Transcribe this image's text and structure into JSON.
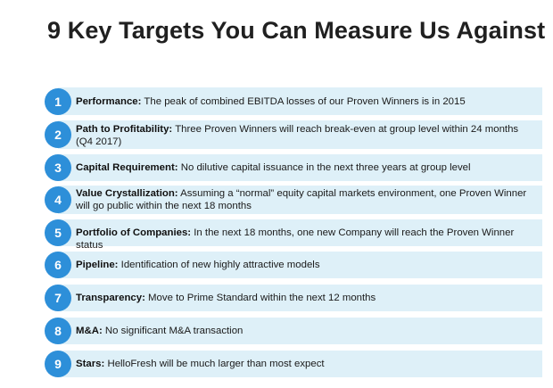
{
  "title": "9 Key Targets You Can Measure Us Against",
  "targets": [
    {
      "number": "1",
      "label": "Performance:",
      "text": "The peak of combined EBITDA losses of our Proven Winners is in 2015"
    },
    {
      "number": "2",
      "label": "Path to Profitability:",
      "text": "Three Proven Winners will reach break-even at group level within 24 months (Q4 2017)"
    },
    {
      "number": "3",
      "label": "Capital Requirement:",
      "text": "No dilutive capital issuance in the next three years at group level"
    },
    {
      "number": "4",
      "label": "Value Crystallization:",
      "text": "Assuming a “normal” equity capital markets environment, one Proven Winner will go public within the next 18 months"
    },
    {
      "number": "5",
      "label": "Portfolio of Companies:",
      "text": "In the next 18 months, one new Company will reach the Proven Winner status"
    },
    {
      "number": "6",
      "label": "Pipeline:",
      "text": "Identification of new highly attractive models"
    },
    {
      "number": "7",
      "label": "Transparency:",
      "text": "Move to Prime Standard within the next 12 months"
    },
    {
      "number": "8",
      "label": "M&A:",
      "text": "No significant M&A transaction"
    },
    {
      "number": "9",
      "label": "Stars:",
      "text": "HelloFresh will be much larger than most expect"
    }
  ],
  "colors": {
    "badge": "#2d8fd9",
    "bar": "#def0f8",
    "title": "#202020"
  }
}
